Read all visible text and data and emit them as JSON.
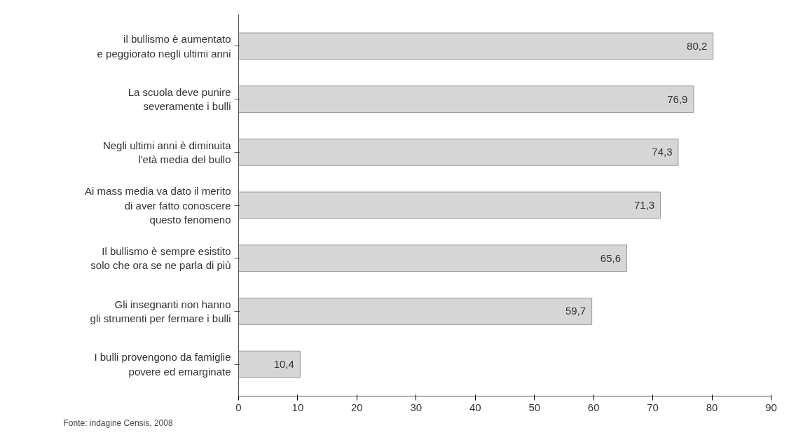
{
  "chart_data": {
    "type": "bar",
    "orientation": "horizontal",
    "categories": [
      "il bullismo è aumentato\ne peggiorato negli ultimi anni",
      "La scuola deve punire\nseveramente i bulli",
      "Negli ultimi anni è diminuita\nl'età media del bullo",
      "Ai mass media va dato il merito\ndi aver fatto conoscere\nquesto fenomeno",
      "Il bullismo è sempre esistito\nsolo che ora se ne parla di più",
      "Gli insegnanti non hanno\ngli strumenti per fermare i bulli",
      "I bulli provengono da famiglie\npovere ed emarginate"
    ],
    "values": [
      80.2,
      76.9,
      74.3,
      71.3,
      65.6,
      59.7,
      10.4
    ],
    "value_labels": [
      "80,2",
      "76,9",
      "74,3",
      "71,3",
      "65,6",
      "59,7",
      "10,4"
    ],
    "color": "#d6d6d6",
    "xlim": [
      0,
      90
    ],
    "xticks": [
      0,
      10,
      20,
      30,
      40,
      50,
      60,
      70,
      80,
      90
    ],
    "grid": false,
    "annotations": [
      "Fonte: indagine Censis, 2008"
    ]
  }
}
